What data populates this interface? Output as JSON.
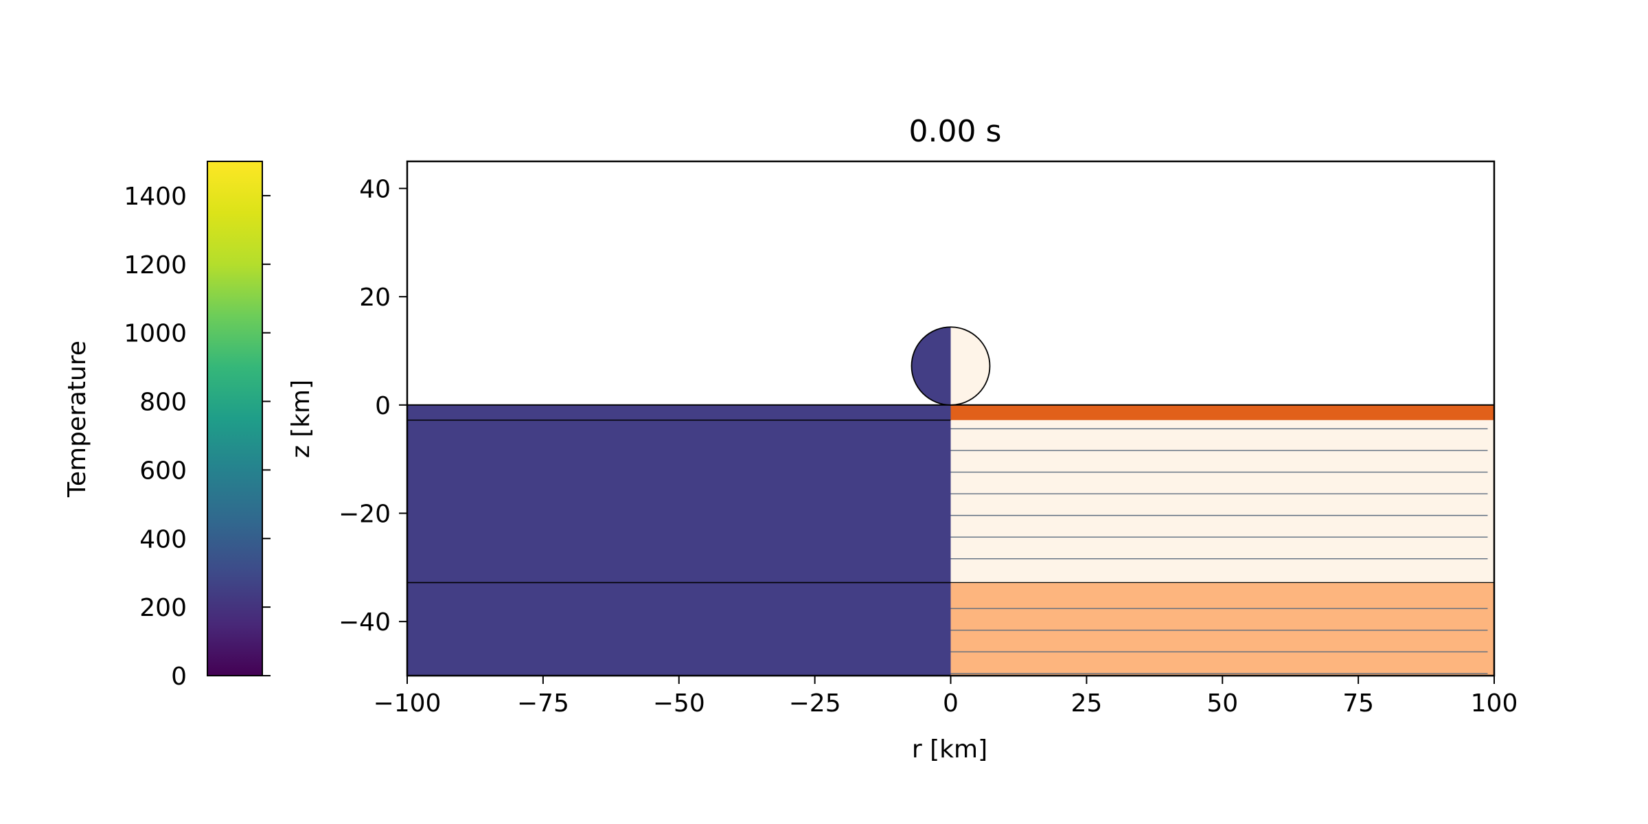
{
  "chart_data": [
    {
      "type": "colorbar",
      "label": "Temperature",
      "colormap": "viridis",
      "range": [
        0,
        1500
      ],
      "ticks": [
        0,
        200,
        400,
        600,
        800,
        1000,
        1200,
        1400
      ],
      "tick_labels": [
        "0",
        "200",
        "400",
        "600",
        "800",
        "1000",
        "1200",
        "1400"
      ]
    },
    {
      "type": "cross-section",
      "title": "0.00 s",
      "xlabel": "r [km]",
      "ylabel": "z [km]",
      "xlim": [
        -100,
        100
      ],
      "ylim": [
        -50,
        45
      ],
      "xticks": [
        -100,
        -75,
        -50,
        -25,
        0,
        25,
        50,
        75,
        100
      ],
      "xtick_labels": [
        "−100",
        "−75",
        "−50",
        "−25",
        "0",
        "25",
        "50",
        "75",
        "100"
      ],
      "yticks": [
        -40,
        -20,
        0,
        20,
        40
      ],
      "ytick_labels": [
        "−40",
        "−20",
        "0",
        "20",
        "40"
      ],
      "grid": false,
      "left_half": {
        "field": "Temperature",
        "value": 293,
        "color": "#433E85",
        "layer_boundaries_z": [
          0,
          -2.8,
          -32.8
        ]
      },
      "right_half": {
        "field": "material",
        "layers": [
          {
            "z_top": 0,
            "z_bottom": -2.8,
            "color": "#E1601A"
          },
          {
            "z_top": -2.8,
            "z_bottom": -32.8,
            "color": "#FEF4E8"
          },
          {
            "z_top": -32.8,
            "z_bottom": -50,
            "color": "#FDB57E"
          }
        ],
        "tracer_lines_z": [
          -4.4,
          -8.4,
          -12.4,
          -16.4,
          -20.4,
          -24.4,
          -28.4,
          -37.6,
          -41.6,
          -45.6,
          -49.6
        ],
        "tracer_line_color": "#5B6B7E"
      },
      "impactor": {
        "center_r": 0,
        "center_z": 7.2,
        "radius": 7.2,
        "left_color": "#433E85",
        "right_color": "#FEF4E8"
      }
    }
  ]
}
